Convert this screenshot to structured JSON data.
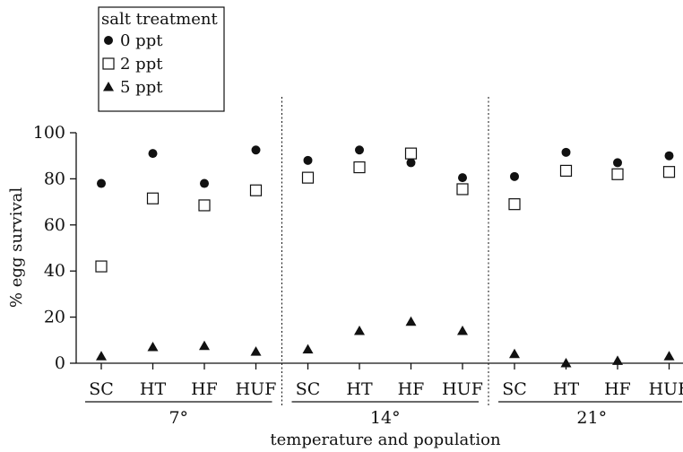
{
  "chart_data": {
    "type": "scatter",
    "ylabel": "% egg survival",
    "xlabel": "temperature and population",
    "ylim": [
      0,
      100
    ],
    "yticks": [
      0,
      20,
      40,
      60,
      80,
      100
    ],
    "populations": [
      "SC",
      "HT",
      "HF",
      "HUF"
    ],
    "temperature_groups": [
      "7°",
      "14°",
      "21°"
    ],
    "legend": {
      "title": "salt treatment",
      "placement": "top-left"
    },
    "categories": [
      "SC",
      "HT",
      "HF",
      "HUF",
      "SC",
      "HT",
      "HF",
      "HUF",
      "SC",
      "HT",
      "HF",
      "HUF"
    ],
    "series": [
      {
        "name": "0 ppt",
        "marker": "filled-circle",
        "values": [
          78,
          91,
          78,
          92.5,
          88,
          92.5,
          87,
          80.5,
          81,
          91.5,
          87,
          90
        ]
      },
      {
        "name": "2 ppt",
        "marker": "open-square",
        "values": [
          42,
          71.5,
          68.5,
          75,
          80.5,
          85,
          91,
          75.5,
          69,
          83.5,
          82,
          83
        ]
      },
      {
        "name": "5 ppt",
        "marker": "filled-triangle",
        "values": [
          3,
          7,
          7.5,
          5,
          6,
          14,
          18,
          14,
          4,
          0,
          1,
          3
        ]
      }
    ]
  }
}
